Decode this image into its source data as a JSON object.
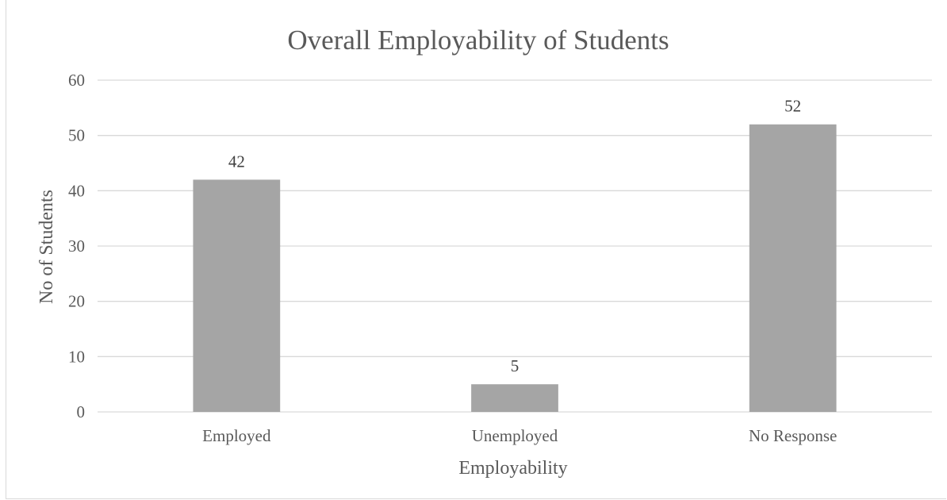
{
  "chart_data": {
    "type": "bar",
    "title": "Overall Employability of Students",
    "xlabel": "Employability",
    "ylabel": "No of Students",
    "categories": [
      "Employed",
      "Unemployed",
      "No Response"
    ],
    "values": [
      42,
      5,
      52
    ],
    "ylim": [
      0,
      60
    ],
    "yticks": [
      "0",
      "10",
      "20",
      "30",
      "40",
      "50",
      "60"
    ],
    "data_labels": [
      "42",
      "5",
      "52"
    ],
    "grid": true,
    "legend": "none",
    "bar_color": "#a5a5a5"
  }
}
